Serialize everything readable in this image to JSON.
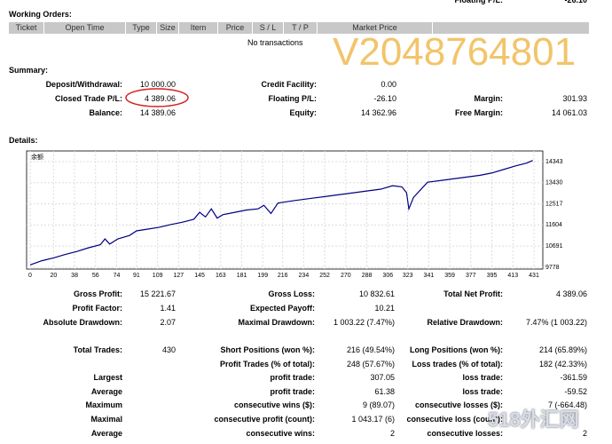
{
  "top_cut": [
    "Floating P/L:",
    "-26.10"
  ],
  "working_orders": {
    "title": "Working Orders:",
    "columns": [
      "Ticket",
      "Open Time",
      "Type",
      "Size",
      "Item",
      "Price",
      "S / L",
      "T / P",
      "Market Price"
    ],
    "empty": "No transactions"
  },
  "watermark": "V2048764801",
  "summary": {
    "title": "Summary:",
    "rows": [
      [
        "Deposit/Withdrawal:",
        "10 000.00",
        "Credit Facility:",
        "0.00",
        null,
        null
      ],
      [
        "Closed Trade P/L:",
        "4 389.06",
        "Floating P/L:",
        "-26.10",
        "Margin:",
        "301.93"
      ],
      [
        "Balance:",
        "14 389.06",
        "Equity:",
        "14 362.96",
        "Free Margin:",
        "14 061.03"
      ]
    ]
  },
  "details": {
    "title": "Details:",
    "chart_data": {
      "type": "line",
      "legend_label": "余额",
      "color": "#000080",
      "grid": true,
      "xlim": [
        0,
        440
      ],
      "ylim": [
        9700,
        14800
      ],
      "xticks": [
        0,
        20,
        38,
        56,
        74,
        91,
        109,
        127,
        145,
        163,
        181,
        199,
        216,
        234,
        252,
        270,
        288,
        306,
        323,
        341,
        359,
        377,
        395,
        413,
        431
      ],
      "yticks": [
        9778,
        10691,
        11604,
        12517,
        13430,
        14343
      ],
      "x": [
        0,
        10,
        20,
        30,
        40,
        50,
        60,
        64,
        68,
        75,
        85,
        91,
        100,
        110,
        120,
        130,
        140,
        145,
        150,
        155,
        160,
        165,
        175,
        185,
        195,
        200,
        206,
        212,
        225,
        240,
        255,
        270,
        285,
        300,
        310,
        318,
        322,
        324,
        328,
        340,
        355,
        370,
        385,
        395,
        405,
        415,
        425,
        430
      ],
      "values": [
        9880,
        10060,
        10180,
        10330,
        10460,
        10620,
        10750,
        11000,
        10780,
        11000,
        11150,
        11350,
        11420,
        11500,
        11620,
        11720,
        11850,
        12150,
        11950,
        12300,
        11900,
        12050,
        12150,
        12250,
        12300,
        12450,
        12100,
        12550,
        12650,
        12750,
        12850,
        12950,
        13050,
        13150,
        13300,
        13250,
        13000,
        12300,
        12800,
        13450,
        13550,
        13650,
        13750,
        13850,
        14000,
        14150,
        14280,
        14389
      ]
    }
  },
  "stats": [
    [
      "Gross Profit:",
      "15 221.67",
      "Gross Loss:",
      "10 832.61",
      "Total Net Profit:",
      "4 389.06"
    ],
    [
      "Profit Factor:",
      "1.41",
      "Expected Payoff:",
      "10.21",
      null,
      null
    ],
    [
      "Absolute Drawdown:",
      "2.07",
      "Maximal Drawdown:",
      "1 003.22 (7.47%)",
      "Relative Drawdown:",
      "7.47% (1 003.22)"
    ],
    [
      "Total Trades:",
      "430",
      "Short Positions (won %):",
      "216 (49.54%)",
      "Long Positions (won %):",
      "214 (65.89%)"
    ],
    [
      null,
      null,
      "Profit Trades (% of total):",
      "248 (57.67%)",
      "Loss trades (% of total):",
      "182 (42.33%)"
    ],
    [
      "Largest",
      null,
      "profit trade:",
      "307.05",
      "loss trade:",
      "-361.59"
    ],
    [
      "Average",
      null,
      "profit trade:",
      "61.38",
      "loss trade:",
      "-59.52"
    ],
    [
      "Maximum",
      null,
      "consecutive wins ($):",
      "9 (89.07)",
      "consecutive losses ($):",
      "7 (-664.48)"
    ],
    [
      "Maximal",
      null,
      "consecutive profit (count):",
      "1 043.17 (6)",
      "consecutive loss (count):",
      null
    ],
    [
      "Average",
      null,
      "consecutive wins:",
      "2",
      "consecutive losses:",
      "2"
    ]
  ],
  "site_mark": "518外汇网"
}
